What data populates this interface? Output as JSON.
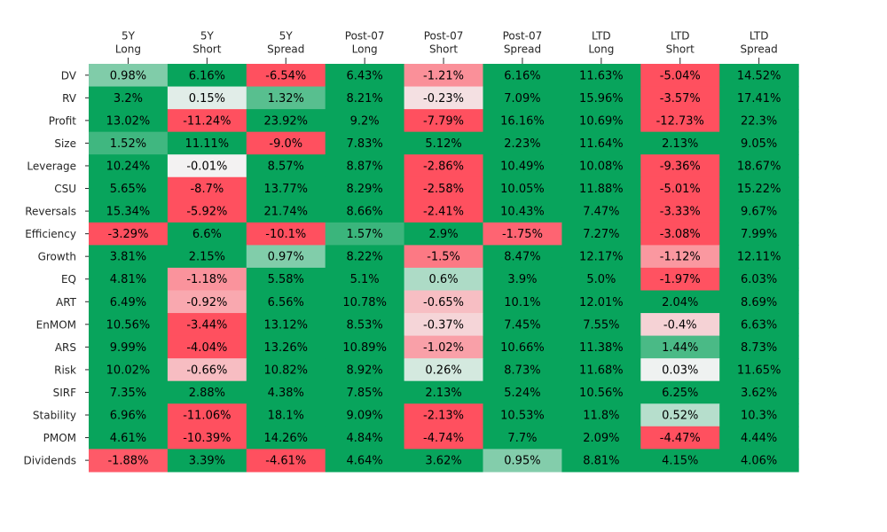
{
  "chart_data": {
    "type": "heatmap",
    "columns": [
      [
        "5Y",
        "Long"
      ],
      [
        "5Y",
        "Short"
      ],
      [
        "5Y",
        "Spread"
      ],
      [
        "Post-07",
        "Long"
      ],
      [
        "Post-07",
        "Short"
      ],
      [
        "Post-07",
        "Spread"
      ],
      [
        "LTD",
        "Long"
      ],
      [
        "LTD",
        "Short"
      ],
      [
        "LTD",
        "Spread"
      ]
    ],
    "rows": [
      "DV",
      "RV",
      "Profit",
      "Size",
      "Leverage",
      "CSU",
      "Reversals",
      "Efficiency",
      "Growth",
      "EQ",
      "ART",
      "EnMOM",
      "ARS",
      "Risk",
      "SIRF",
      "Stability",
      "PMOM",
      "Dividends"
    ],
    "values": [
      [
        0.98,
        6.16,
        -6.54,
        6.43,
        -1.21,
        6.16,
        11.63,
        -5.04,
        14.52
      ],
      [
        3.2,
        0.15,
        1.32,
        8.21,
        -0.23,
        7.09,
        15.96,
        -3.57,
        17.41
      ],
      [
        13.02,
        -11.24,
        23.92,
        9.2,
        -7.79,
        16.16,
        10.69,
        -12.73,
        22.3
      ],
      [
        1.52,
        11.11,
        -9.0,
        7.83,
        5.12,
        2.23,
        11.64,
        2.13,
        9.05
      ],
      [
        10.24,
        -0.01,
        8.57,
        8.87,
        -2.86,
        10.49,
        10.08,
        -9.36,
        18.67
      ],
      [
        5.65,
        -8.7,
        13.77,
        8.29,
        -2.58,
        10.05,
        11.88,
        -5.01,
        15.22
      ],
      [
        15.34,
        -5.92,
        21.74,
        8.66,
        -2.41,
        10.43,
        7.47,
        -3.33,
        9.67
      ],
      [
        -3.29,
        6.6,
        -10.1,
        1.57,
        2.9,
        -1.75,
        7.27,
        -3.08,
        7.99
      ],
      [
        3.81,
        2.15,
        0.97,
        8.22,
        -1.5,
        8.47,
        12.17,
        -1.12,
        12.11
      ],
      [
        4.81,
        -1.18,
        5.58,
        5.1,
        0.6,
        3.9,
        5.0,
        -1.97,
        6.03
      ],
      [
        6.49,
        -0.92,
        6.56,
        10.78,
        -0.65,
        10.1,
        12.01,
        2.04,
        8.69
      ],
      [
        10.56,
        -3.44,
        13.12,
        8.53,
        -0.37,
        7.45,
        7.55,
        -0.4,
        6.63
      ],
      [
        9.99,
        -4.04,
        13.26,
        10.89,
        -1.02,
        10.66,
        11.38,
        1.44,
        8.73
      ],
      [
        10.02,
        -0.66,
        10.82,
        8.92,
        0.26,
        8.73,
        11.68,
        0.03,
        11.65
      ],
      [
        7.35,
        2.88,
        4.38,
        7.85,
        2.13,
        5.24,
        10.56,
        6.25,
        3.62
      ],
      [
        6.96,
        -11.06,
        18.1,
        9.09,
        -2.13,
        10.53,
        11.8,
        0.52,
        10.3
      ],
      [
        4.61,
        -10.39,
        14.26,
        4.84,
        -4.74,
        7.7,
        2.09,
        -4.47,
        4.44
      ],
      [
        -1.88,
        3.39,
        -4.61,
        4.64,
        3.62,
        0.95,
        8.81,
        4.15,
        4.06
      ]
    ],
    "labels": [
      [
        "0.98%",
        "6.16%",
        "-6.54%",
        "6.43%",
        "-1.21%",
        "6.16%",
        "11.63%",
        "-5.04%",
        "14.52%"
      ],
      [
        "3.2%",
        "0.15%",
        "1.32%",
        "8.21%",
        "-0.23%",
        "7.09%",
        "15.96%",
        "-3.57%",
        "17.41%"
      ],
      [
        "13.02%",
        "-11.24%",
        "23.92%",
        "9.2%",
        "-7.79%",
        "16.16%",
        "10.69%",
        "-12.73%",
        "22.3%"
      ],
      [
        "1.52%",
        "11.11%",
        "-9.0%",
        "7.83%",
        "5.12%",
        "2.23%",
        "11.64%",
        "2.13%",
        "9.05%"
      ],
      [
        "10.24%",
        "-0.01%",
        "8.57%",
        "8.87%",
        "-2.86%",
        "10.49%",
        "10.08%",
        "-9.36%",
        "18.67%"
      ],
      [
        "5.65%",
        "-8.7%",
        "13.77%",
        "8.29%",
        "-2.58%",
        "10.05%",
        "11.88%",
        "-5.01%",
        "15.22%"
      ],
      [
        "15.34%",
        "-5.92%",
        "21.74%",
        "8.66%",
        "-2.41%",
        "10.43%",
        "7.47%",
        "-3.33%",
        "9.67%"
      ],
      [
        "-3.29%",
        "6.6%",
        "-10.1%",
        "1.57%",
        "2.9%",
        "-1.75%",
        "7.27%",
        "-3.08%",
        "7.99%"
      ],
      [
        "3.81%",
        "2.15%",
        "0.97%",
        "8.22%",
        "-1.5%",
        "8.47%",
        "12.17%",
        "-1.12%",
        "12.11%"
      ],
      [
        "4.81%",
        "-1.18%",
        "5.58%",
        "5.1%",
        "0.6%",
        "3.9%",
        "5.0%",
        "-1.97%",
        "6.03%"
      ],
      [
        "6.49%",
        "-0.92%",
        "6.56%",
        "10.78%",
        "-0.65%",
        "10.1%",
        "12.01%",
        "2.04%",
        "8.69%"
      ],
      [
        "10.56%",
        "-3.44%",
        "13.12%",
        "8.53%",
        "-0.37%",
        "7.45%",
        "7.55%",
        "-0.4%",
        "6.63%"
      ],
      [
        "9.99%",
        "-4.04%",
        "13.26%",
        "10.89%",
        "-1.02%",
        "10.66%",
        "11.38%",
        "1.44%",
        "8.73%"
      ],
      [
        "10.02%",
        "-0.66%",
        "10.82%",
        "8.92%",
        "0.26%",
        "8.73%",
        "11.68%",
        "0.03%",
        "11.65%"
      ],
      [
        "7.35%",
        "2.88%",
        "4.38%",
        "7.85%",
        "2.13%",
        "5.24%",
        "10.56%",
        "6.25%",
        "3.62%"
      ],
      [
        "6.96%",
        "-11.06%",
        "18.1%",
        "9.09%",
        "-2.13%",
        "10.53%",
        "11.8%",
        "0.52%",
        "10.3%"
      ],
      [
        "4.61%",
        "-10.39%",
        "14.26%",
        "4.84%",
        "-4.74%",
        "7.7%",
        "2.09%",
        "-4.47%",
        "4.44%"
      ],
      [
        "-1.88%",
        "3.39%",
        "-4.61%",
        "4.64%",
        "3.62%",
        "0.95%",
        "8.81%",
        "4.15%",
        "4.06%"
      ]
    ],
    "color_scale": {
      "negative": "#ff505f",
      "center": "#f3f3f3",
      "positive": "#08a45c",
      "vmin": -2,
      "vmax": 2
    },
    "colorbar": false,
    "x_tick_position": "top",
    "grid": false
  }
}
